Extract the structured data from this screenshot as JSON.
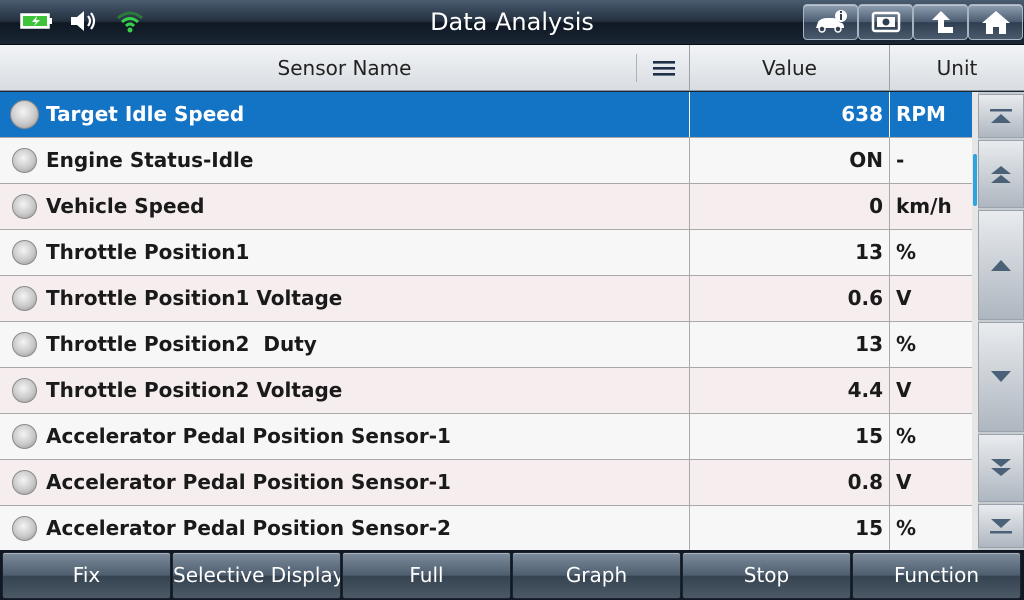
{
  "header": {
    "title": "Data Analysis",
    "status_icons": [
      "battery-charging-icon",
      "speaker-icon",
      "wifi-icon"
    ],
    "buttons": [
      "vehicle-info-icon",
      "screenshot-icon",
      "back-icon",
      "home-icon"
    ]
  },
  "table": {
    "columns": {
      "name": "Sensor Name",
      "value": "Value",
      "unit": "Unit"
    },
    "rows": [
      {
        "name": "Target Idle Speed",
        "value": "638",
        "unit": "RPM",
        "selected": true
      },
      {
        "name": "Engine Status-Idle",
        "value": "ON",
        "unit": "-"
      },
      {
        "name": "Vehicle Speed",
        "value": "0",
        "unit": "km/h"
      },
      {
        "name": "Throttle Position1",
        "value": "13",
        "unit": "%"
      },
      {
        "name": "Throttle Position1 Voltage",
        "value": "0.6",
        "unit": "V"
      },
      {
        "name": "Throttle Position2  Duty",
        "value": "13",
        "unit": "%"
      },
      {
        "name": "Throttle Position2 Voltage",
        "value": "4.4",
        "unit": "V"
      },
      {
        "name": "Accelerator Pedal Position Sensor-1",
        "value": "15",
        "unit": "%"
      },
      {
        "name": "Accelerator Pedal Position Sensor-1",
        "value": "0.8",
        "unit": "V"
      },
      {
        "name": "Accelerator Pedal Position Sensor-2",
        "value": "15",
        "unit": "%"
      }
    ]
  },
  "scroll": {
    "buttons": [
      "scroll-top-icon",
      "page-up-icon",
      "line-up-icon",
      "line-down-icon",
      "page-down-icon",
      "scroll-bottom-icon"
    ]
  },
  "footer": {
    "buttons": [
      "Fix",
      "Selective Display",
      "Full",
      "Graph",
      "Stop",
      "Function"
    ]
  },
  "colors": {
    "selected_row": "#1373c5",
    "row_bg": "#f6eeee",
    "scroll_thumb": "#2fa3e0"
  }
}
